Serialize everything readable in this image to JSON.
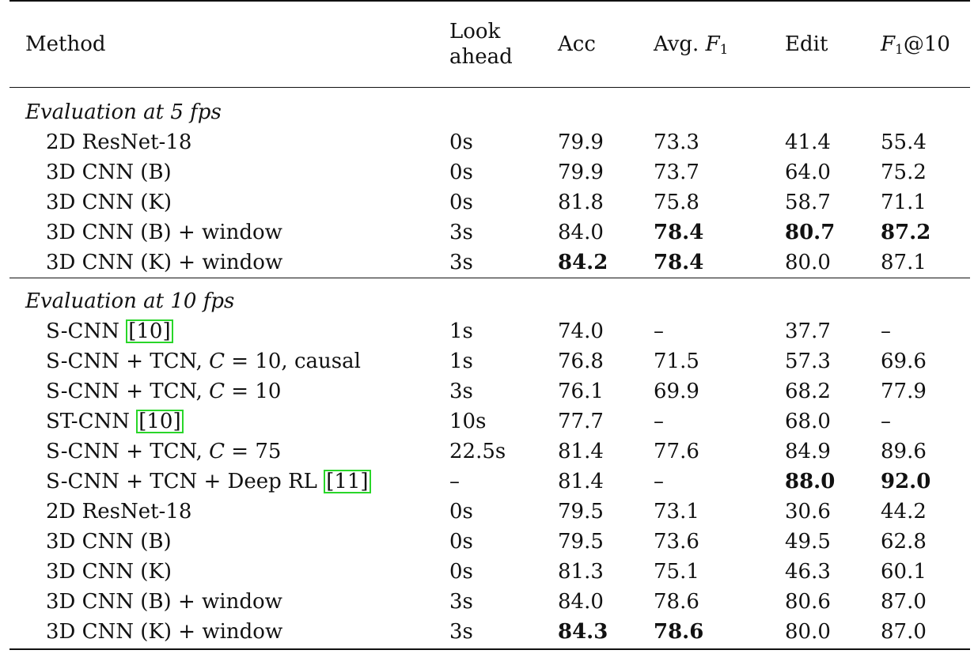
{
  "header": {
    "method": "Method",
    "look_ahead_line1": "Look",
    "look_ahead_line2": "ahead",
    "acc": "Acc",
    "avg_f1_prefix": "Avg. ",
    "avg_f1_var": "F",
    "avg_f1_sub": "1",
    "edit": "Edit",
    "f1at10_var": "F",
    "f1at10_sub": "1",
    "f1at10_suffix": "@10"
  },
  "sections": [
    {
      "title": "Evaluation at 5 fps",
      "rows": [
        {
          "method": "2D ResNet-18",
          "look": "0s",
          "acc": "79.9",
          "avg": "73.3",
          "edit": "41.4",
          "f1": "55.4"
        },
        {
          "method": "3D CNN (B)",
          "look": "0s",
          "acc": "79.9",
          "avg": "73.7",
          "edit": "64.0",
          "f1": "75.2"
        },
        {
          "method": "3D CNN (K)",
          "look": "0s",
          "acc": "81.8",
          "avg": "75.8",
          "edit": "58.7",
          "f1": "71.1"
        },
        {
          "method": "3D CNN (B) + window",
          "look": "3s",
          "acc": "84.0",
          "avg": "78.4",
          "edit": "80.7",
          "f1": "87.2"
        },
        {
          "method": "3D CNN (K) + window",
          "look": "3s",
          "acc": "84.2",
          "avg": "78.4",
          "edit": "80.0",
          "f1": "87.1"
        }
      ]
    },
    {
      "title": "Evaluation at 10 fps",
      "rows": [
        {
          "method": "S-CNN ",
          "cite": "[10]",
          "look": "1s",
          "acc": "74.0",
          "avg": "–",
          "edit": "37.7",
          "f1": "–"
        },
        {
          "method_a": "S-CNN + TCN, ",
          "method_var": "C",
          "method_b": " = 10, causal",
          "look": "1s",
          "acc": "76.8",
          "avg": "71.5",
          "edit": "57.3",
          "f1": "69.6"
        },
        {
          "method_a": "S-CNN + TCN, ",
          "method_var": "C",
          "method_b": " = 10",
          "look": "3s",
          "acc": "76.1",
          "avg": "69.9",
          "edit": "68.2",
          "f1": "77.9"
        },
        {
          "method": "ST-CNN ",
          "cite": "[10]",
          "look": "10s",
          "acc": "77.7",
          "avg": "–",
          "edit": "68.0",
          "f1": "–"
        },
        {
          "method_a": "S-CNN + TCN, ",
          "method_var": "C",
          "method_b": " = 75",
          "look": "22.5s",
          "acc": "81.4",
          "avg": "77.6",
          "edit": "84.9",
          "f1": "89.6"
        },
        {
          "method": "S-CNN + TCN + Deep RL ",
          "cite": "[11]",
          "look": "–",
          "acc": "81.4",
          "avg": "–",
          "edit": "88.0",
          "f1": "92.0"
        },
        {
          "method": "2D ResNet-18",
          "look": "0s",
          "acc": "79.5",
          "avg": "73.1",
          "edit": "30.6",
          "f1": "44.2"
        },
        {
          "method": "3D CNN (B)",
          "look": "0s",
          "acc": "79.5",
          "avg": "73.6",
          "edit": "49.5",
          "f1": "62.8"
        },
        {
          "method": "3D CNN (K)",
          "look": "0s",
          "acc": "81.3",
          "avg": "75.1",
          "edit": "46.3",
          "f1": "60.1"
        },
        {
          "method": "3D CNN (B) + window",
          "look": "3s",
          "acc": "84.0",
          "avg": "78.6",
          "edit": "80.6",
          "f1": "87.0"
        },
        {
          "method": "3D CNN (K) + window",
          "look": "3s",
          "acc": "84.3",
          "avg": "78.6",
          "edit": "80.0",
          "f1": "87.0"
        }
      ]
    }
  ],
  "colors": {
    "citation_box": "#29d629",
    "text": "#111111",
    "rule": "#111111"
  }
}
